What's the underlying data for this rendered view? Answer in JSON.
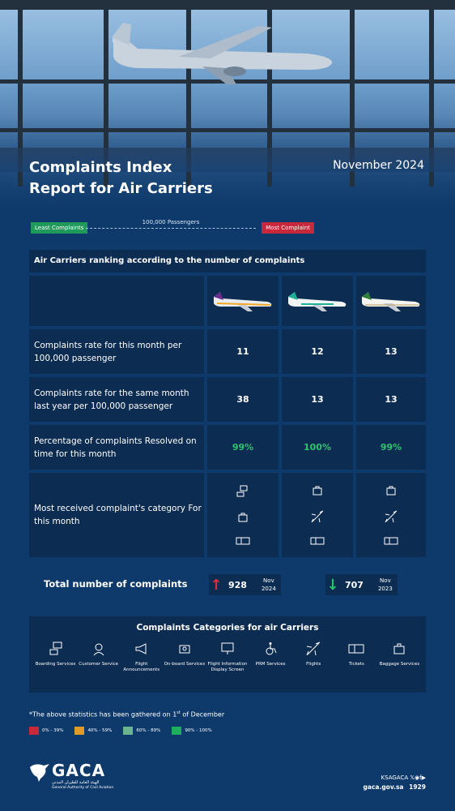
{
  "header": {
    "title_line1": "Complaints Index",
    "title_line2": "Report for Air Carriers",
    "date": "November 2024"
  },
  "legend_scale": {
    "least": "Least Complaints",
    "most": "Most Complaint",
    "passengers": "100,000 Passengers"
  },
  "table": {
    "title": "Air Carriers ranking according to the number of complaints",
    "rows": [
      {
        "label": "Complaints rate for this month per 100,000 passenger",
        "values": [
          "11",
          "12",
          "13"
        ]
      },
      {
        "label": "Complaints rate for the same month last year per 100,000 passenger",
        "values": [
          "38",
          "13",
          "13"
        ]
      },
      {
        "label": "Percentage of complaints Resolved on time for this month",
        "values": [
          "99%",
          "100%",
          "99%"
        ]
      },
      {
        "label": "Most received complaint's category For this month"
      }
    ]
  },
  "totals": {
    "label": "Total number of complaints",
    "current": {
      "value": "928",
      "month": "Nov",
      "year": "2024",
      "trend": "up",
      "color": "#d6303f"
    },
    "previous": {
      "value": "707",
      "month": "Nov",
      "year": "2023",
      "trend": "down",
      "color": "#2fc26f"
    }
  },
  "categories": {
    "title": "Complaints Categories for air Carriers",
    "items": [
      {
        "name": "Boarding Services",
        "icon": "boarding-icon"
      },
      {
        "name": "Customer Service",
        "icon": "customer-service-icon"
      },
      {
        "name": "Flight Announcements",
        "icon": "megaphone-icon"
      },
      {
        "name": "On-board Services",
        "icon": "onboard-icon"
      },
      {
        "name": "Flight Information Display Screen",
        "icon": "display-screen-icon"
      },
      {
        "name": "PRM Services",
        "icon": "wheelchair-icon"
      },
      {
        "name": "Flights",
        "icon": "plane-icon"
      },
      {
        "name": "Tickets",
        "icon": "ticket-icon"
      },
      {
        "name": "Baggage Services",
        "icon": "baggage-icon"
      }
    ]
  },
  "footnote": {
    "text_before": "*The above statistics has been gathered on 1",
    "sup": "st",
    "text_after": " of December"
  },
  "color_key": [
    {
      "label": "0% - 39%",
      "color": "#c7283a"
    },
    {
      "label": "40% - 59%",
      "color": "#e09a2a"
    },
    {
      "label": "60% - 89%",
      "color": "#6bb48f"
    },
    {
      "label": "90% - 100%",
      "color": "#1fae5d"
    }
  ],
  "footer": {
    "logo_text": "GACA",
    "logo_arabic": "الهيئة العامة للطيران المدني",
    "logo_english": "General Authority of Civil Aviation",
    "social_handle": "KSAGACA",
    "website": "gaca.gov.sa",
    "hotline": "1929"
  }
}
